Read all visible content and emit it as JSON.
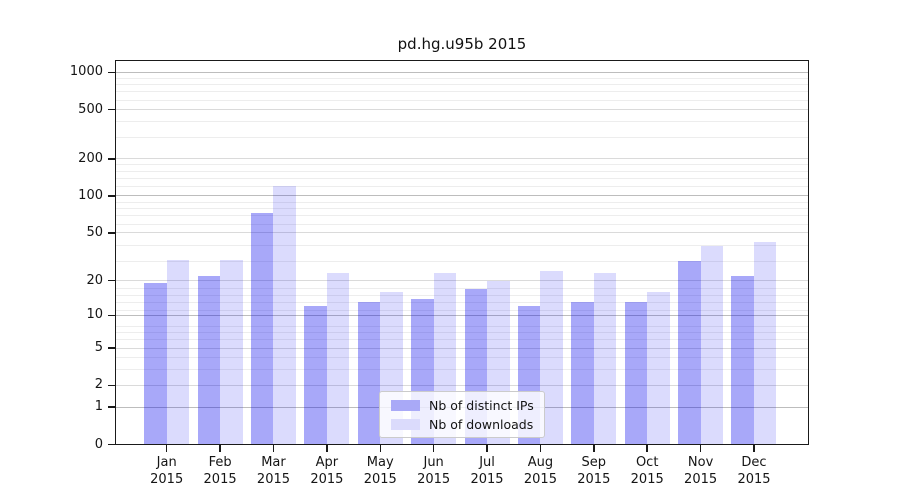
{
  "chart_data": {
    "type": "bar",
    "title": "pd.hg.u95b 2015",
    "categories": [
      "Jan 2015",
      "Feb 2015",
      "Mar 2015",
      "Apr 2015",
      "May 2015",
      "Jun 2015",
      "Jul 2015",
      "Aug 2015",
      "Sep 2015",
      "Oct 2015",
      "Nov 2015",
      "Dec 2015"
    ],
    "series": [
      {
        "name": "Nb of distinct IPs",
        "values": [
          19,
          22,
          73,
          12,
          13,
          14,
          17,
          12,
          13,
          13,
          29,
          22
        ],
        "color": "rgba(0,0,238,0.34)",
        "legend_swatch_color": "#a9a9f7"
      },
      {
        "name": "Nb of downloads",
        "values": [
          30,
          30,
          121,
          23,
          16,
          23,
          20,
          24,
          23,
          16,
          39,
          42
        ],
        "color": "rgba(0,0,238,0.14)",
        "legend_swatch_color": "#dbdbfc"
      }
    ],
    "yscale": "log1p",
    "yticks": [
      1000,
      500,
      200,
      100,
      50,
      20,
      10,
      5,
      2,
      1,
      0
    ],
    "yticks_strong_grid": [
      1,
      10,
      100,
      1000
    ],
    "yticks_light_grid": [
      2,
      5,
      20,
      50,
      200,
      500
    ],
    "minor_grid_values_1p": [
      4,
      5,
      7,
      8,
      9,
      12,
      14,
      16,
      18,
      30,
      40,
      60,
      70,
      80,
      90,
      120,
      140,
      160,
      180,
      300,
      400,
      600,
      700,
      800,
      900
    ],
    "ylim": [
      0,
      1260
    ],
    "xlabel": "",
    "ylabel": "",
    "grid": true,
    "legend_position": "lower center"
  },
  "colors": {
    "background": "#ffffff",
    "bar_distinct_ips": "rgba(0,0,238,0.34)",
    "bar_downloads": "rgba(0,0,238,0.14)",
    "grid_minor": "#ededed",
    "grid_major_light": "#dadada",
    "grid_major_strong": "#bdbdbd",
    "spine": "#1a1a1a",
    "text": "#151515",
    "legend_background": "rgba(255,255,255,0.8)",
    "legend_border": "#cbcbcb"
  }
}
